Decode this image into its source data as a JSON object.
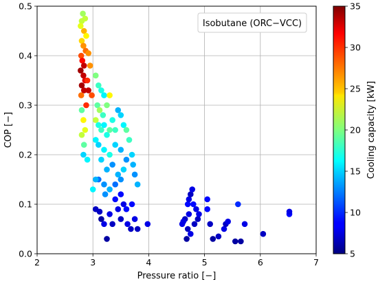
{
  "chart_data": {
    "type": "scatter",
    "xlabel": "Pressure ratio [−]",
    "ylabel": "COP [−]",
    "xlim": [
      2,
      7
    ],
    "ylim": [
      0,
      0.5
    ],
    "xticks": [
      "2",
      "3",
      "4",
      "5",
      "6",
      "7"
    ],
    "yticks": [
      "0.0",
      "0.1",
      "0.2",
      "0.3",
      "0.4",
      "0.5"
    ],
    "grid": true,
    "legend_text": "Isobutane (ORC−VCC)",
    "legend_position": "top-right",
    "colorbar": {
      "label": "Cooling capacity [kW]",
      "range": [
        5,
        35
      ],
      "ticks": [
        "5",
        "10",
        "15",
        "20",
        "25",
        "30",
        "35"
      ],
      "colormap": "jet"
    },
    "series": [
      {
        "points": [
          [
            2.8,
            0.47,
            22
          ],
          [
            2.82,
            0.485,
            21
          ],
          [
            2.86,
            0.475,
            22
          ],
          [
            2.78,
            0.46,
            23
          ],
          [
            2.84,
            0.45,
            26
          ],
          [
            2.88,
            0.44,
            24
          ],
          [
            2.8,
            0.43,
            25
          ],
          [
            2.83,
            0.42,
            27
          ],
          [
            2.87,
            0.41,
            28
          ],
          [
            2.79,
            0.4,
            29
          ],
          [
            2.92,
            0.405,
            27
          ],
          [
            2.81,
            0.39,
            31
          ],
          [
            2.84,
            0.38,
            33
          ],
          [
            2.78,
            0.37,
            34
          ],
          [
            2.83,
            0.36,
            33
          ],
          [
            2.86,
            0.35,
            32
          ],
          [
            2.8,
            0.34,
            34
          ],
          [
            2.84,
            0.33,
            33
          ],
          [
            2.79,
            0.32,
            28
          ],
          [
            2.88,
            0.3,
            30
          ],
          [
            2.8,
            0.29,
            19
          ],
          [
            2.83,
            0.27,
            24
          ],
          [
            2.86,
            0.25,
            23
          ],
          [
            2.8,
            0.24,
            22
          ],
          [
            2.84,
            0.22,
            19
          ],
          [
            2.83,
            0.2,
            15
          ],
          [
            2.9,
            0.19,
            16
          ],
          [
            2.9,
            0.35,
            30
          ],
          [
            2.92,
            0.33,
            33
          ],
          [
            2.95,
            0.38,
            27
          ],
          [
            2.98,
            0.32,
            29
          ],
          [
            3.05,
            0.36,
            20
          ],
          [
            3.1,
            0.34,
            18
          ],
          [
            3.15,
            0.33,
            17
          ],
          [
            3.2,
            0.32,
            16
          ],
          [
            3.08,
            0.3,
            19
          ],
          [
            3.12,
            0.29,
            21
          ],
          [
            3.18,
            0.28,
            18
          ],
          [
            3.25,
            0.3,
            20
          ],
          [
            3.3,
            0.32,
            24
          ],
          [
            3.05,
            0.27,
            22
          ],
          [
            3.1,
            0.26,
            17
          ],
          [
            3.15,
            0.25,
            18
          ],
          [
            3.2,
            0.26,
            16
          ],
          [
            3.25,
            0.24,
            17
          ],
          [
            3.3,
            0.25,
            19
          ],
          [
            3.35,
            0.27,
            17
          ],
          [
            3.4,
            0.25,
            18
          ],
          [
            3.45,
            0.29,
            14
          ],
          [
            3.5,
            0.28,
            15
          ],
          [
            3.55,
            0.26,
            16
          ],
          [
            3.6,
            0.25,
            19
          ],
          [
            3.65,
            0.23,
            18
          ],
          [
            3.7,
            0.2,
            15
          ],
          [
            3.72,
            0.18,
            14
          ],
          [
            3.75,
            0.16,
            13
          ],
          [
            3.8,
            0.14,
            14
          ],
          [
            3.05,
            0.23,
            16
          ],
          [
            3.1,
            0.22,
            15
          ],
          [
            3.2,
            0.21,
            16
          ],
          [
            3.3,
            0.2,
            17
          ],
          [
            3.4,
            0.22,
            15
          ],
          [
            3.5,
            0.21,
            14
          ],
          [
            3.6,
            0.19,
            13
          ],
          [
            3.15,
            0.19,
            15
          ],
          [
            3.25,
            0.17,
            14
          ],
          [
            3.35,
            0.18,
            13
          ],
          [
            3.45,
            0.16,
            14
          ],
          [
            3.55,
            0.17,
            15
          ],
          [
            3.1,
            0.15,
            12
          ],
          [
            3.2,
            0.14,
            13
          ],
          [
            3.3,
            0.13,
            14
          ],
          [
            3.4,
            0.14,
            12
          ],
          [
            3.5,
            0.15,
            13
          ],
          [
            3.22,
            0.12,
            13
          ],
          [
            3.0,
            0.13,
            16
          ],
          [
            3.05,
            0.15,
            14
          ],
          [
            3.05,
            0.09,
            7
          ],
          [
            3.15,
            0.07,
            6
          ],
          [
            3.2,
            0.06,
            8
          ],
          [
            3.3,
            0.08,
            8
          ],
          [
            3.35,
            0.06,
            7
          ],
          [
            3.4,
            0.11,
            9
          ],
          [
            3.45,
            0.09,
            8
          ],
          [
            3.5,
            0.07,
            7
          ],
          [
            3.55,
            0.1,
            8
          ],
          [
            3.6,
            0.09,
            9
          ],
          [
            3.62,
            0.06,
            8
          ],
          [
            3.68,
            0.05,
            7
          ],
          [
            3.75,
            0.07,
            8
          ],
          [
            3.8,
            0.05,
            7
          ],
          [
            3.7,
            0.1,
            9
          ],
          [
            3.25,
            0.03,
            6
          ],
          [
            3.98,
            0.06,
            8
          ],
          [
            3.12,
            0.085,
            7
          ],
          [
            3.5,
            0.12,
            9
          ],
          [
            4.6,
            0.06,
            8
          ],
          [
            4.65,
            0.07,
            7
          ],
          [
            4.7,
            0.1,
            9
          ],
          [
            4.72,
            0.11,
            8
          ],
          [
            4.75,
            0.12,
            7
          ],
          [
            4.78,
            0.13,
            8
          ],
          [
            4.8,
            0.1,
            9
          ],
          [
            4.85,
            0.09,
            8
          ],
          [
            4.88,
            0.07,
            7
          ],
          [
            4.72,
            0.08,
            8
          ],
          [
            4.7,
            0.05,
            7
          ],
          [
            4.75,
            0.04,
            8
          ],
          [
            4.68,
            0.03,
            6
          ],
          [
            4.82,
            0.06,
            7
          ],
          [
            4.9,
            0.08,
            8
          ],
          [
            5.05,
            0.09,
            9
          ],
          [
            5.1,
            0.06,
            7
          ],
          [
            5.15,
            0.03,
            6
          ],
          [
            5.25,
            0.035,
            7
          ],
          [
            5.35,
            0.05,
            8
          ],
          [
            5.38,
            0.06,
            7
          ],
          [
            5.42,
            0.065,
            8
          ],
          [
            5.55,
            0.025,
            6
          ],
          [
            5.6,
            0.1,
            10
          ],
          [
            5.65,
            0.025,
            6
          ],
          [
            5.72,
            0.06,
            8
          ],
          [
            6.05,
            0.04,
            7
          ],
          [
            6.52,
            0.08,
            9
          ],
          [
            6.52,
            0.085,
            8
          ],
          [
            4.62,
            0.065,
            8
          ],
          [
            5.05,
            0.11,
            9
          ]
        ]
      }
    ]
  }
}
